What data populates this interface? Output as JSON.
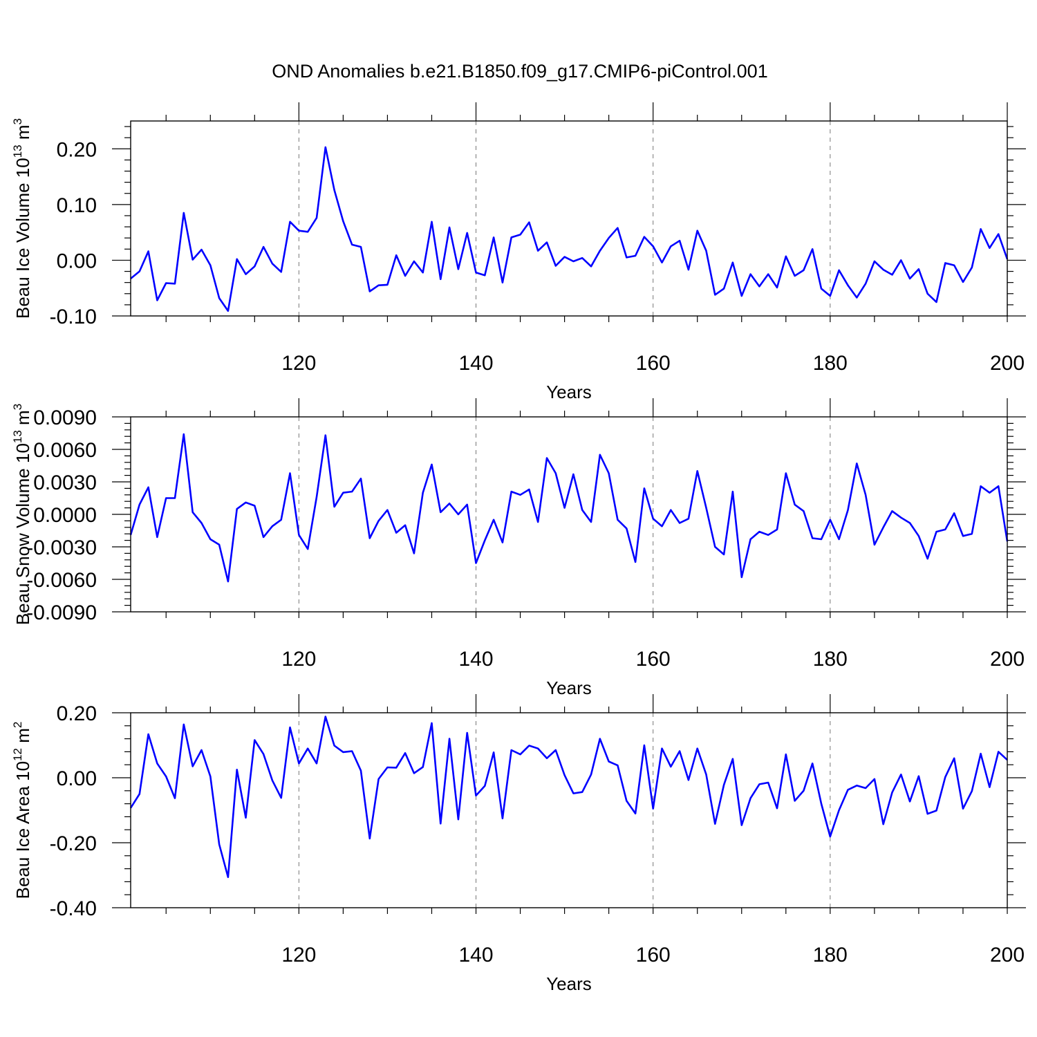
{
  "chart_data": {
    "title": "OND Anomalies b.e21.B1850.f09_g17.CMIP6-piControl.001",
    "panels": [
      {
        "type": "line",
        "ylabel": "Beau Ice Volume 10",
        "ylabel_exp": "13",
        "ylabel_unit": " m",
        "ylabel_unit_exp": "3",
        "xlabel": "Years",
        "xlim": [
          101,
          200
        ],
        "ylim": [
          -0.1,
          0.25
        ],
        "xticks": [
          "120",
          "140",
          "160",
          "180",
          "200"
        ],
        "yticks": [
          "-0.10",
          "0.00",
          "0.10",
          "0.20"
        ],
        "x_start": 101,
        "values": [
          -0.033,
          -0.02,
          0.016,
          -0.072,
          -0.041,
          -0.042,
          0.085,
          0.001,
          0.019,
          -0.009,
          -0.068,
          -0.091,
          0.002,
          -0.025,
          -0.011,
          0.024,
          -0.006,
          -0.021,
          0.069,
          0.053,
          0.051,
          0.076,
          0.203,
          0.126,
          0.07,
          0.028,
          0.024,
          -0.056,
          -0.045,
          -0.044,
          0.009,
          -0.028,
          -0.002,
          -0.022,
          0.069,
          -0.034,
          0.059,
          -0.016,
          0.049,
          -0.022,
          -0.027,
          0.041,
          -0.04,
          0.041,
          0.046,
          0.068,
          0.017,
          0.032,
          -0.01,
          0.006,
          -0.002,
          0.004,
          -0.011,
          0.017,
          0.04,
          0.058,
          0.005,
          0.008,
          0.042,
          0.025,
          -0.004,
          0.025,
          0.035,
          -0.017,
          0.053,
          0.017,
          -0.062,
          -0.051,
          -0.004,
          -0.064,
          -0.025,
          -0.047,
          -0.025,
          -0.049,
          0.007,
          -0.028,
          -0.018,
          0.02,
          -0.051,
          -0.064,
          -0.018,
          -0.045,
          -0.067,
          -0.042,
          -0.002,
          -0.017,
          -0.026,
          0.0,
          -0.033,
          -0.016,
          -0.06,
          -0.075,
          -0.005,
          -0.009,
          -0.039,
          -0.013,
          0.056,
          0.022,
          0.047,
          0.002
        ]
      },
      {
        "type": "line",
        "ylabel": "Beau Snow Volume 10",
        "ylabel_exp": "13",
        "ylabel_unit": " m",
        "ylabel_unit_exp": "3",
        "xlabel": "Years",
        "xlim": [
          101,
          200
        ],
        "ylim": [
          -0.009,
          0.009
        ],
        "xticks": [
          "120",
          "140",
          "160",
          "180",
          "200"
        ],
        "yticks": [
          "-0.0090",
          "-0.0060",
          "-0.0030",
          "0.0000",
          "0.0030",
          "0.0060",
          "0.0090"
        ],
        "x_start": 101,
        "values": [
          -0.0019,
          0.0009,
          0.0025,
          -0.0021,
          0.0015,
          0.0015,
          0.0074,
          0.0002,
          -0.0008,
          -0.0023,
          -0.0028,
          -0.0062,
          0.0005,
          0.0011,
          0.0008,
          -0.0021,
          -0.0011,
          -0.0005,
          0.0038,
          -0.0019,
          -0.0032,
          0.0016,
          0.0073,
          0.0007,
          0.002,
          0.0021,
          0.0033,
          -0.0022,
          -0.0006,
          0.0004,
          -0.0017,
          -0.001,
          -0.0036,
          0.002,
          0.0046,
          0.0002,
          0.001,
          0.0,
          0.0009,
          -0.0045,
          -0.0024,
          -0.0005,
          -0.0026,
          0.0021,
          0.0018,
          0.0023,
          -0.0007,
          0.0052,
          0.0038,
          0.0006,
          0.0037,
          0.0004,
          -0.0007,
          0.0055,
          0.0038,
          -0.0005,
          -0.0013,
          -0.0044,
          0.0024,
          -0.0004,
          -0.0011,
          0.0004,
          -0.0008,
          -0.0004,
          0.004,
          0.0006,
          -0.003,
          -0.0037,
          0.0021,
          -0.0058,
          -0.0023,
          -0.0016,
          -0.0019,
          -0.0014,
          0.0038,
          0.0009,
          0.0003,
          -0.0022,
          -0.0023,
          -0.0005,
          -0.0023,
          0.0004,
          0.0047,
          0.0018,
          -0.0028,
          -0.0012,
          0.0003,
          -0.0003,
          -0.0008,
          -0.002,
          -0.0041,
          -0.0016,
          -0.0014,
          0.0001,
          -0.002,
          -0.0018,
          0.0026,
          0.002,
          0.0026,
          -0.0025
        ]
      },
      {
        "type": "line",
        "ylabel": "Beau Ice Area 10",
        "ylabel_exp": "12",
        "ylabel_unit": " m",
        "ylabel_unit_exp": "2",
        "xlabel": "Years",
        "xlim": [
          101,
          200
        ],
        "ylim": [
          -0.4,
          0.2
        ],
        "xticks": [
          "120",
          "140",
          "160",
          "180",
          "200"
        ],
        "yticks": [
          "-0.40",
          "-0.20",
          "0.00",
          "0.20"
        ],
        "x_start": 101,
        "values": [
          -0.093,
          -0.05,
          0.134,
          0.044,
          0.004,
          -0.063,
          0.164,
          0.035,
          0.085,
          0.004,
          -0.205,
          -0.306,
          0.025,
          -0.123,
          0.116,
          0.073,
          -0.008,
          -0.062,
          0.155,
          0.044,
          0.09,
          0.044,
          0.188,
          0.099,
          0.079,
          0.082,
          0.022,
          -0.187,
          -0.004,
          0.032,
          0.031,
          0.076,
          0.014,
          0.033,
          0.168,
          -0.141,
          0.12,
          -0.128,
          0.138,
          -0.055,
          -0.025,
          0.078,
          -0.125,
          0.085,
          0.072,
          0.099,
          0.09,
          0.06,
          0.085,
          0.008,
          -0.048,
          -0.044,
          0.01,
          0.12,
          0.05,
          0.038,
          -0.071,
          -0.11,
          0.1,
          -0.095,
          0.09,
          0.034,
          0.082,
          -0.007,
          0.09,
          0.01,
          -0.142,
          -0.022,
          0.058,
          -0.146,
          -0.063,
          -0.02,
          -0.015,
          -0.094,
          0.072,
          -0.071,
          -0.04,
          0.044,
          -0.08,
          -0.181,
          -0.1,
          -0.037,
          -0.024,
          -0.032,
          -0.004,
          -0.143,
          -0.045,
          0.01,
          -0.073,
          0.005,
          -0.111,
          -0.101,
          0.002,
          0.06,
          -0.095,
          -0.041,
          0.074,
          -0.029,
          0.08,
          0.055
        ]
      }
    ]
  }
}
